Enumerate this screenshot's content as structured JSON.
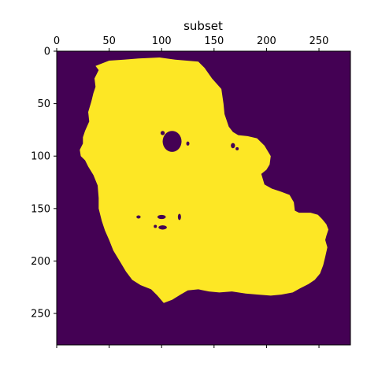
{
  "chart_data": {
    "type": "heatmap",
    "title": "subset",
    "xlabel": "",
    "ylabel": "",
    "xlim": [
      0,
      280
    ],
    "ylim": [
      280,
      0
    ],
    "x_ticks": [
      0,
      50,
      100,
      150,
      200,
      250
    ],
    "y_ticks": [
      0,
      50,
      100,
      150,
      200,
      250
    ],
    "x_axis_position": "top",
    "grid": false,
    "colormap": "viridis",
    "background_value": 0,
    "mask_value": 1,
    "colors": {
      "background": "#440154",
      "mask": "#fde725"
    },
    "mask_outline": [
      [
        37,
        14
      ],
      [
        50,
        9
      ],
      [
        64,
        8
      ],
      [
        78,
        7
      ],
      [
        98,
        6
      ],
      [
        113,
        8
      ],
      [
        135,
        10
      ],
      [
        141,
        16
      ],
      [
        148,
        26
      ],
      [
        157,
        36
      ],
      [
        159,
        50
      ],
      [
        160,
        60
      ],
      [
        164,
        72
      ],
      [
        168,
        77
      ],
      [
        173,
        80
      ],
      [
        182,
        81
      ],
      [
        191,
        83
      ],
      [
        198,
        90
      ],
      [
        204,
        100
      ],
      [
        203,
        108
      ],
      [
        200,
        113
      ],
      [
        195,
        117
      ],
      [
        198,
        127
      ],
      [
        205,
        131
      ],
      [
        214,
        134
      ],
      [
        222,
        137
      ],
      [
        226,
        144
      ],
      [
        227,
        152
      ],
      [
        231,
        154
      ],
      [
        242,
        154
      ],
      [
        249,
        156
      ],
      [
        253,
        160
      ],
      [
        257,
        165
      ],
      [
        259,
        170
      ],
      [
        257,
        176
      ],
      [
        256,
        180
      ],
      [
        258,
        187
      ],
      [
        256,
        196
      ],
      [
        254,
        204
      ],
      [
        251,
        212
      ],
      [
        246,
        218
      ],
      [
        240,
        222
      ],
      [
        232,
        226
      ],
      [
        225,
        230
      ],
      [
        214,
        232
      ],
      [
        204,
        233
      ],
      [
        192,
        232
      ],
      [
        180,
        231
      ],
      [
        167,
        229
      ],
      [
        155,
        230
      ],
      [
        145,
        229
      ],
      [
        135,
        227
      ],
      [
        125,
        228
      ],
      [
        118,
        232
      ],
      [
        110,
        237
      ],
      [
        102,
        240
      ],
      [
        96,
        233
      ],
      [
        90,
        227
      ],
      [
        80,
        223
      ],
      [
        72,
        218
      ],
      [
        66,
        210
      ],
      [
        60,
        200
      ],
      [
        54,
        190
      ],
      [
        50,
        180
      ],
      [
        46,
        171
      ],
      [
        43,
        162
      ],
      [
        40,
        150
      ],
      [
        40,
        140
      ],
      [
        39,
        128
      ],
      [
        35,
        118
      ],
      [
        30,
        110
      ],
      [
        27,
        104
      ],
      [
        23,
        100
      ],
      [
        22,
        94
      ],
      [
        25,
        88
      ],
      [
        25,
        82
      ],
      [
        27,
        76
      ],
      [
        31,
        67
      ],
      [
        30,
        58
      ],
      [
        33,
        48
      ],
      [
        35,
        40
      ],
      [
        37,
        34
      ],
      [
        36,
        26
      ],
      [
        40,
        18
      ]
    ],
    "holes": [
      {
        "cx": 110,
        "cy": 86,
        "rx": 9,
        "ry": 10
      },
      {
        "cx": 101,
        "cy": 78,
        "rx": 2,
        "ry": 2
      },
      {
        "cx": 125,
        "cy": 88,
        "rx": 1.5,
        "ry": 2
      },
      {
        "cx": 168,
        "cy": 90,
        "rx": 2,
        "ry": 2.5
      },
      {
        "cx": 172,
        "cy": 93,
        "rx": 1.5,
        "ry": 1.5
      },
      {
        "cx": 78,
        "cy": 158,
        "rx": 2,
        "ry": 1.5
      },
      {
        "cx": 100,
        "cy": 158,
        "rx": 4,
        "ry": 2
      },
      {
        "cx": 117,
        "cy": 158,
        "rx": 1.5,
        "ry": 3
      },
      {
        "cx": 101,
        "cy": 168,
        "rx": 4,
        "ry": 2
      },
      {
        "cx": 94,
        "cy": 167,
        "rx": 1.5,
        "ry": 1.5
      }
    ]
  }
}
